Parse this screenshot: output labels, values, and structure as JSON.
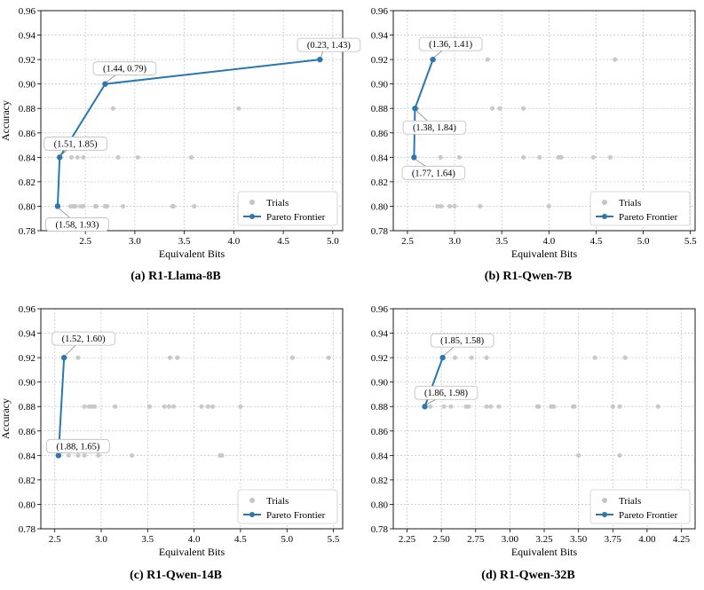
{
  "chart_data": [
    {
      "type": "scatter",
      "caption": "(a) R1-Llama-8B",
      "xlabel": "Equivalent Bits",
      "ylabel": "Accuracy",
      "xlim": [
        2.05,
        5.1
      ],
      "ylim": [
        0.78,
        0.96
      ],
      "xticks": [
        "2.5",
        "3.0",
        "3.5",
        "4.0",
        "4.5",
        "5.0"
      ],
      "yticks": [
        "0.78",
        "0.80",
        "0.82",
        "0.84",
        "0.86",
        "0.88",
        "0.90",
        "0.92",
        "0.94",
        "0.96"
      ],
      "grid": true,
      "legend": {
        "position": "lower right",
        "entries": [
          "Trials",
          "Pareto Frontier"
        ]
      },
      "trials": [
        [
          2.35,
          0.8
        ],
        [
          2.38,
          0.8
        ],
        [
          2.4,
          0.8
        ],
        [
          2.45,
          0.8
        ],
        [
          2.48,
          0.8
        ],
        [
          2.6,
          0.8
        ],
        [
          2.61,
          0.8
        ],
        [
          2.7,
          0.8
        ],
        [
          2.72,
          0.8
        ],
        [
          2.88,
          0.8
        ],
        [
          3.38,
          0.8
        ],
        [
          3.39,
          0.8
        ],
        [
          3.6,
          0.8
        ],
        [
          2.24,
          0.84
        ],
        [
          2.36,
          0.84
        ],
        [
          2.42,
          0.84
        ],
        [
          2.48,
          0.84
        ],
        [
          2.83,
          0.84
        ],
        [
          3.03,
          0.84
        ],
        [
          3.57,
          0.84
        ],
        [
          2.78,
          0.88
        ],
        [
          4.05,
          0.88
        ]
      ],
      "frontier": [
        [
          2.22,
          0.8
        ],
        [
          2.24,
          0.84
        ],
        [
          2.7,
          0.9
        ],
        [
          4.87,
          0.92
        ]
      ],
      "annotations": [
        {
          "text": "(1.58, 1.93)",
          "x": 2.22,
          "y": 0.8,
          "side": "below"
        },
        {
          "text": "(1.51, 1.85)",
          "x": 2.24,
          "y": 0.84,
          "side": "above"
        },
        {
          "text": "(1.44, 0.79)",
          "x": 2.7,
          "y": 0.9,
          "side": "above"
        },
        {
          "text": "(0.23, 1.43)",
          "x": 4.87,
          "y": 0.92,
          "side": "above"
        }
      ]
    },
    {
      "type": "scatter",
      "caption": "(b) R1-Qwen-7B",
      "xlabel": "Equivalent Bits",
      "ylabel": "",
      "xlim": [
        2.35,
        5.55
      ],
      "ylim": [
        0.78,
        0.96
      ],
      "xticks": [
        "2.5",
        "3.0",
        "3.5",
        "4.0",
        "4.5",
        "5.0",
        "5.5"
      ],
      "yticks": [
        "0.78",
        "0.80",
        "0.82",
        "0.84",
        "0.86",
        "0.88",
        "0.90",
        "0.92",
        "0.94",
        "0.96"
      ],
      "grid": true,
      "legend": {
        "position": "lower right",
        "entries": [
          "Trials",
          "Pareto Frontier"
        ]
      },
      "trials": [
        [
          2.82,
          0.8
        ],
        [
          2.86,
          0.8
        ],
        [
          2.95,
          0.8
        ],
        [
          3.0,
          0.8
        ],
        [
          3.27,
          0.8
        ],
        [
          4.0,
          0.8
        ],
        [
          2.85,
          0.84
        ],
        [
          3.05,
          0.84
        ],
        [
          3.73,
          0.84
        ],
        [
          3.9,
          0.84
        ],
        [
          4.1,
          0.84
        ],
        [
          4.13,
          0.84
        ],
        [
          4.47,
          0.84
        ],
        [
          4.65,
          0.84
        ],
        [
          2.6,
          0.88
        ],
        [
          3.4,
          0.88
        ],
        [
          3.48,
          0.88
        ],
        [
          3.73,
          0.88
        ],
        [
          3.35,
          0.92
        ],
        [
          4.7,
          0.92
        ]
      ],
      "frontier": [
        [
          2.57,
          0.84
        ],
        [
          2.58,
          0.88
        ],
        [
          2.77,
          0.92
        ]
      ],
      "annotations": [
        {
          "text": "(1.36, 1.41)",
          "x": 2.77,
          "y": 0.92,
          "side": "above"
        },
        {
          "text": "(1.38, 1.84)",
          "x": 2.58,
          "y": 0.88,
          "side": "below"
        },
        {
          "text": "(1.77, 1.64)",
          "x": 2.57,
          "y": 0.84,
          "side": "below"
        }
      ]
    },
    {
      "type": "scatter",
      "caption": "(c) R1-Qwen-14B",
      "xlabel": "Equivalent Bits",
      "ylabel": "Accuracy",
      "xlim": [
        2.35,
        5.6
      ],
      "ylim": [
        0.78,
        0.96
      ],
      "xticks": [
        "2.5",
        "3.0",
        "3.5",
        "4.0",
        "4.5",
        "5.0",
        "5.5"
      ],
      "yticks": [
        "0.78",
        "0.80",
        "0.82",
        "0.84",
        "0.86",
        "0.88",
        "0.90",
        "0.92",
        "0.94",
        "0.96"
      ],
      "grid": true,
      "legend": {
        "position": "lower right",
        "entries": [
          "Trials",
          "Pareto Frontier"
        ]
      },
      "trials": [
        [
          2.65,
          0.84
        ],
        [
          2.75,
          0.84
        ],
        [
          2.82,
          0.84
        ],
        [
          2.97,
          0.84
        ],
        [
          3.33,
          0.84
        ],
        [
          4.28,
          0.84
        ],
        [
          4.3,
          0.84
        ],
        [
          2.82,
          0.88
        ],
        [
          2.87,
          0.88
        ],
        [
          2.9,
          0.88
        ],
        [
          2.93,
          0.88
        ],
        [
          3.15,
          0.88
        ],
        [
          3.52,
          0.88
        ],
        [
          3.68,
          0.88
        ],
        [
          3.73,
          0.88
        ],
        [
          3.78,
          0.88
        ],
        [
          4.08,
          0.88
        ],
        [
          4.15,
          0.88
        ],
        [
          4.2,
          0.88
        ],
        [
          4.5,
          0.88
        ],
        [
          2.75,
          0.92
        ],
        [
          3.74,
          0.92
        ],
        [
          3.82,
          0.92
        ],
        [
          5.06,
          0.92
        ],
        [
          5.45,
          0.92
        ]
      ],
      "frontier": [
        [
          2.54,
          0.84
        ],
        [
          2.6,
          0.92
        ]
      ],
      "annotations": [
        {
          "text": "(1.52, 1.60)",
          "x": 2.6,
          "y": 0.92,
          "side": "above"
        },
        {
          "text": "(1.88, 1.65)",
          "x": 2.54,
          "y": 0.84,
          "side": "above"
        }
      ]
    },
    {
      "type": "scatter",
      "caption": "(d) R1-Qwen-32B",
      "xlabel": "Equivalent Bits",
      "ylabel": "",
      "xlim": [
        2.15,
        4.35
      ],
      "ylim": [
        0.78,
        0.96
      ],
      "xticks": [
        "2.25",
        "2.50",
        "2.75",
        "3.00",
        "3.25",
        "3.50",
        "3.75",
        "4.00",
        "4.25"
      ],
      "yticks": [
        "0.78",
        "0.80",
        "0.82",
        "0.84",
        "0.86",
        "0.88",
        "0.90",
        "0.92",
        "0.94",
        "0.96"
      ],
      "grid": true,
      "legend": {
        "position": "lower right",
        "entries": [
          "Trials",
          "Pareto Frontier"
        ]
      },
      "trials": [
        [
          3.5,
          0.84
        ],
        [
          3.8,
          0.84
        ],
        [
          2.42,
          0.88
        ],
        [
          2.52,
          0.88
        ],
        [
          2.57,
          0.88
        ],
        [
          2.68,
          0.88
        ],
        [
          2.7,
          0.88
        ],
        [
          2.83,
          0.88
        ],
        [
          2.86,
          0.88
        ],
        [
          2.92,
          0.88
        ],
        [
          3.2,
          0.88
        ],
        [
          3.21,
          0.88
        ],
        [
          3.3,
          0.88
        ],
        [
          3.32,
          0.88
        ],
        [
          3.46,
          0.88
        ],
        [
          3.47,
          0.88
        ],
        [
          3.75,
          0.88
        ],
        [
          3.8,
          0.88
        ],
        [
          4.08,
          0.88
        ],
        [
          2.6,
          0.92
        ],
        [
          2.72,
          0.92
        ],
        [
          2.83,
          0.92
        ],
        [
          3.62,
          0.92
        ],
        [
          3.84,
          0.92
        ]
      ],
      "frontier": [
        [
          2.38,
          0.88
        ],
        [
          2.51,
          0.92
        ]
      ],
      "annotations": [
        {
          "text": "(1.85, 1.58)",
          "x": 2.51,
          "y": 0.92,
          "side": "above"
        },
        {
          "text": "(1.86, 1.98)",
          "x": 2.38,
          "y": 0.88,
          "side": "above"
        }
      ]
    }
  ],
  "colors": {
    "frontier": "#2a78b0",
    "trials": "#c4c4c4",
    "grid": "#c8c8c8"
  }
}
